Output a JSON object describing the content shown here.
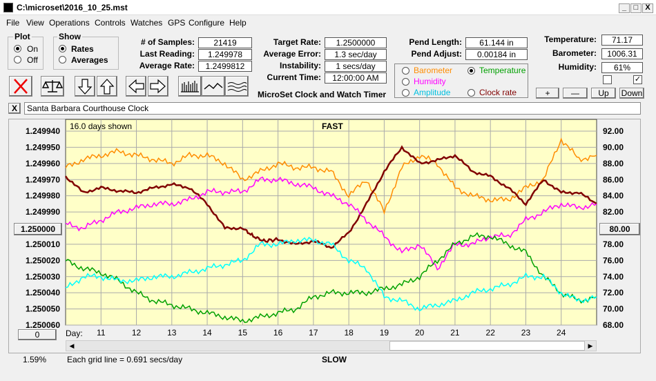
{
  "window": {
    "title": "C:\\microset\\2016_10_25.mst",
    "min": "_",
    "max": "□",
    "close": "X"
  },
  "menu": [
    "File",
    "View",
    "Operations",
    "Controls",
    "Watches",
    "GPS",
    "Configure",
    "Help"
  ],
  "plot": {
    "label": "Plot",
    "on": "On",
    "off": "Off",
    "selected": "On"
  },
  "show": {
    "label": "Show",
    "rates": "Rates",
    "averages": "Averages",
    "selected": "Rates"
  },
  "stats": {
    "samples_label": "# of Samples:",
    "samples": "21419",
    "last_label": "Last Reading:",
    "last": "1.249978",
    "avg_label": "Average Rate:",
    "avg": "1.2499812"
  },
  "target": {
    "rate_label": "Target Rate:",
    "rate": "1.2500000",
    "err_label": "Average Error:",
    "err": "1.3 sec/day",
    "inst_label": "Instability:",
    "inst": "1 secs/day",
    "time_label": "Current Time:",
    "time": "12:00:00 AM",
    "subtitle": "MicroSet Clock and Watch Timer"
  },
  "pend": {
    "length_label": "Pend Length:",
    "length": "61.144 in",
    "adjust_label": "Pend Adjust:",
    "adjust": "0.00184 in"
  },
  "sensors": {
    "baro": "Barometer",
    "temp": "Temperature",
    "hum": "Humidity",
    "amp": "Amplitude",
    "clock": "Clock rate",
    "selected": "Temperature"
  },
  "env": {
    "temp_label": "Temperature:",
    "temp": "71.17",
    "baro_label": "Barometer:",
    "baro": "1006.31",
    "hum_label": "Humidity:",
    "hum": "61%"
  },
  "env_buttons": {
    "plus": "+",
    "minus": "—",
    "up": "Up",
    "down": "Down"
  },
  "clock_name": "Santa Barbara Courthouse Clock",
  "clear_btn": "X",
  "chart": {
    "days_shown": "16.0 days shown",
    "top": "FAST",
    "bottom": "SLOW",
    "grid_note": "Each grid line = 0.691 secs/day",
    "pct": "1.59%",
    "left_btn": "1.250000",
    "right_btn": "80.00",
    "zero_btn": "0",
    "day_label": "Day:"
  },
  "colors": {
    "baro": "#ff8c00",
    "temp": "#00a000",
    "hum": "#ff00ff",
    "amp": "#00ffff",
    "rate": "#800000",
    "plotbg": "#ffffc8"
  },
  "chart_data": {
    "type": "line",
    "x_label": "Day:",
    "x_ticks": [
      "11",
      "12",
      "13",
      "14",
      "15",
      "16",
      "17",
      "18",
      "19",
      "20",
      "21",
      "22",
      "23",
      "24"
    ],
    "y_left_ticks": [
      "1.249940",
      "1.249950",
      "1.249960",
      "1.249970",
      "1.249980",
      "1.249990",
      "1.250000",
      "1.250010",
      "1.250020",
      "1.250030",
      "1.250040",
      "1.250050",
      "1.250060"
    ],
    "y_right_ticks": [
      "92.00",
      "90.00",
      "88.00",
      "86.00",
      "84.00",
      "82.00",
      "80.00",
      "78.00",
      "76.00",
      "74.00",
      "72.00",
      "70.00",
      "68.00"
    ],
    "ylim_left": [
      1.24994,
      1.25006
    ],
    "ylim_right": [
      68,
      92
    ],
    "xlim": [
      10,
      25
    ],
    "grid": true,
    "series": [
      {
        "key": "baro",
        "x": [
          10,
          10.5,
          11,
          11.5,
          12,
          12.5,
          13,
          13.5,
          14,
          14.5,
          15,
          15.5,
          16,
          16.5,
          17,
          17.5,
          18,
          18.5,
          19,
          19.5,
          20,
          20.5,
          21,
          21.5,
          22,
          22.5,
          23,
          23.5,
          24,
          24.5,
          25
        ],
        "values": [
          87.5,
          88.5,
          89,
          89.5,
          89,
          88.5,
          88,
          89,
          89,
          88,
          86,
          87,
          88,
          87.5,
          87.5,
          87,
          84,
          86,
          82,
          87.5,
          89,
          88,
          85,
          84,
          83.5,
          83.5,
          85,
          86,
          91,
          88.5,
          89
        ]
      },
      {
        "key": "rate",
        "x": [
          10,
          10.5,
          11,
          11.5,
          12,
          12.5,
          13,
          13.5,
          14,
          14.5,
          15,
          15.3,
          15.6,
          16,
          16.5,
          17,
          17.5,
          18,
          18.5,
          19,
          19.5,
          20,
          20.5,
          21,
          21.5,
          22,
          22.5,
          23,
          23.5,
          24,
          24.5,
          25
        ],
        "values": [
          1.249968,
          1.249978,
          1.249975,
          1.249977,
          1.249978,
          1.249975,
          1.249973,
          1.249975,
          1.249985,
          1.25,
          1.25,
          1.250005,
          1.250008,
          1.250007,
          1.25001,
          1.250008,
          1.250012,
          1.250003,
          1.249985,
          1.249965,
          1.24995,
          1.24996,
          1.249958,
          1.249955,
          1.249965,
          1.249968,
          1.249975,
          1.249985,
          1.24997,
          1.249978,
          1.249978,
          1.249985
        ]
      },
      {
        "key": "hum",
        "x": [
          10,
          10.5,
          11,
          11.5,
          12,
          12.5,
          13,
          13.5,
          14,
          14.5,
          15,
          15.5,
          16,
          16.5,
          17,
          17.5,
          18,
          18.5,
          19,
          19.5,
          20,
          20.5,
          21,
          21.5,
          22,
          22.5,
          23,
          23.5,
          24,
          24.5,
          25
        ],
        "values": [
          80.5,
          80,
          81,
          82,
          82.5,
          83,
          83,
          83.5,
          84.5,
          84.5,
          84.5,
          86,
          86,
          85.5,
          85,
          84,
          83,
          81,
          79,
          77,
          78,
          75,
          78,
          78,
          79,
          79,
          81,
          82,
          83,
          82.5,
          83
        ]
      },
      {
        "key": "temp",
        "x": [
          10,
          10.5,
          11,
          11.5,
          12,
          12.5,
          13,
          13.5,
          14,
          14.5,
          15,
          15.5,
          16,
          16.5,
          17,
          17.5,
          18,
          18.5,
          19,
          19.5,
          20,
          20.5,
          21,
          21.5,
          22,
          22.5,
          23,
          23.5,
          24,
          24.5,
          25
        ],
        "values": [
          76,
          75,
          74.5,
          73.5,
          72,
          71,
          70.5,
          70,
          69.5,
          69,
          68.5,
          69,
          69.5,
          70,
          71.5,
          72,
          72,
          72,
          72.5,
          73,
          74,
          76,
          78,
          79,
          79,
          78,
          77,
          74,
          72,
          71,
          71.5
        ]
      },
      {
        "key": "amp",
        "x": [
          10,
          10.5,
          11,
          11.5,
          12,
          12.5,
          13,
          13.5,
          14,
          14.5,
          15,
          15.5,
          16,
          16.5,
          17,
          17.5,
          18,
          18.5,
          19,
          19.5,
          20,
          20.5,
          21,
          21.5,
          22,
          22.5,
          23,
          23.5,
          24,
          24.5,
          25
        ],
        "values": [
          72.5,
          74,
          74,
          73.5,
          73.5,
          74,
          74,
          74.5,
          75,
          75.5,
          76,
          78,
          78,
          78.5,
          78.5,
          78,
          76,
          75,
          71.5,
          71,
          70,
          70.5,
          71,
          72,
          72.5,
          73,
          74,
          74,
          72,
          71,
          71.5
        ]
      }
    ]
  }
}
